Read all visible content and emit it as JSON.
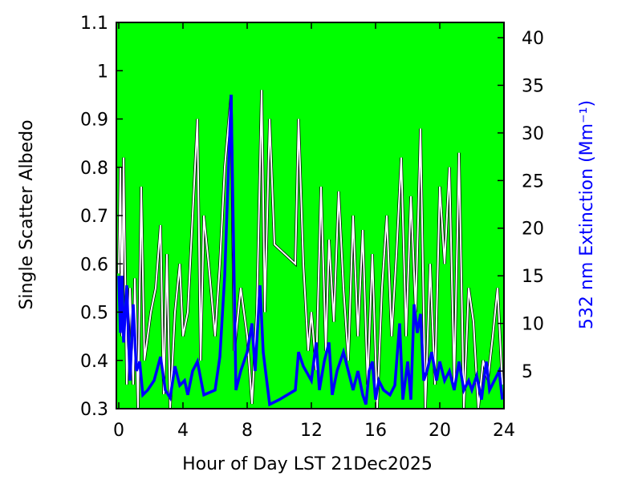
{
  "chart_data": {
    "type": "line",
    "xlabel": "Hour of Day LST 21Dec2025",
    "ylabel": "Single Scatter Albedo",
    "y2label": "532 nm Extinction (Mm⁻¹)",
    "background": "#00ff00",
    "xlim": [
      -0.15,
      24
    ],
    "xticks": [
      0,
      4,
      8,
      12,
      16,
      20,
      24
    ],
    "ylim": [
      0.3,
      1.1
    ],
    "yticks": [
      0.3,
      0.4,
      0.5,
      0.6,
      0.7,
      0.8,
      0.9,
      1,
      1.1
    ],
    "y2lim": [
      1.05,
      41.6
    ],
    "y2ticks": [
      5,
      10,
      15,
      20,
      25,
      30,
      35,
      40
    ],
    "series": [
      {
        "color": "#ffffff",
        "x": [
          0,
          0.1,
          0.2,
          0.3,
          0.5,
          0.7,
          0.9,
          1.0,
          1.2,
          1.4,
          1.6,
          1.8,
          2.0,
          2.3,
          2.6,
          2.8,
          3.0,
          3.2,
          3.5,
          3.8,
          4.0,
          4.3,
          4.6,
          4.9,
          5.1,
          5.3,
          5.6,
          6.0,
          6.3,
          6.6,
          7.0,
          7.2,
          7.6,
          8.0,
          8.3,
          8.6,
          8.9,
          9.1,
          9.4,
          9.7,
          11.0,
          11.2,
          11.5,
          11.8,
          12.0,
          12.3,
          12.6,
          12.9,
          13.1,
          13.4,
          13.7,
          14.0,
          14.3,
          14.6,
          14.9,
          15.2,
          15.5,
          15.8,
          16.1,
          16.4,
          16.7,
          17.0,
          17.3,
          17.6,
          17.9,
          18.2,
          18.5,
          18.8,
          19.1,
          19.4,
          19.7,
          20.0,
          20.3,
          20.6,
          20.9,
          21.2,
          21.5,
          21.8,
          22.1,
          22.4,
          22.7,
          23.0,
          23.3,
          23.6,
          23.9
        ],
        "values": [
          0.58,
          0.8,
          0.45,
          0.82,
          0.35,
          0.55,
          0.35,
          0.57,
          0.3,
          0.76,
          0.4,
          0.45,
          0.5,
          0.55,
          0.68,
          0.33,
          0.62,
          0.3,
          0.5,
          0.6,
          0.45,
          0.5,
          0.7,
          0.9,
          0.4,
          0.7,
          0.6,
          0.45,
          0.6,
          0.8,
          0.95,
          0.42,
          0.55,
          0.45,
          0.31,
          0.5,
          0.96,
          0.5,
          0.9,
          0.64,
          0.6,
          0.9,
          0.6,
          0.42,
          0.5,
          0.38,
          0.76,
          0.42,
          0.65,
          0.48,
          0.75,
          0.55,
          0.4,
          0.7,
          0.45,
          0.67,
          0.35,
          0.62,
          0.3,
          0.55,
          0.7,
          0.45,
          0.62,
          0.82,
          0.45,
          0.74,
          0.5,
          0.88,
          0.3,
          0.6,
          0.35,
          0.76,
          0.6,
          0.8,
          0.35,
          0.83,
          0.3,
          0.55,
          0.48,
          0.3,
          0.4,
          0.36,
          0.45,
          0.55,
          0.35
        ]
      },
      {
        "color": "#0000ff",
        "axis": "y2",
        "x": [
          0,
          0.1,
          0.2,
          0.3,
          0.5,
          0.7,
          0.9,
          1.1,
          1.3,
          1.5,
          1.8,
          2.2,
          2.6,
          2.9,
          3.2,
          3.5,
          3.8,
          4.1,
          4.3,
          4.6,
          4.9,
          5.3,
          6.0,
          6.3,
          6.6,
          7.0,
          7.3,
          7.6,
          8.0,
          8.3,
          8.5,
          8.8,
          9.0,
          9.4,
          10,
          11.0,
          11.2,
          11.5,
          12.0,
          12.3,
          12.5,
          12.8,
          13.1,
          13.3,
          13.6,
          14.0,
          14.3,
          14.6,
          14.9,
          15.2,
          15.4,
          15.6,
          15.8,
          16.0,
          16.2,
          16.5,
          16.9,
          17.2,
          17.5,
          17.7,
          18.0,
          18.2,
          18.4,
          18.6,
          18.8,
          19.0,
          19.2,
          19.5,
          19.8,
          20.0,
          20.3,
          20.6,
          20.9,
          21.2,
          21.5,
          21.8,
          22.0,
          22.3,
          22.6,
          22.9,
          23.1,
          23.4,
          23.7,
          23.9
        ],
        "values": [
          15,
          9,
          15,
          8,
          14,
          4,
          12,
          5,
          6,
          2.5,
          3,
          4,
          6.5,
          3,
          2.2,
          5.5,
          3.5,
          4,
          2.5,
          5,
          6,
          2.5,
          3,
          6.5,
          15,
          34,
          3,
          5,
          7,
          10,
          5,
          14,
          7,
          1.5,
          2,
          3,
          7,
          5.5,
          4,
          8,
          3,
          6,
          8,
          2.5,
          5,
          7,
          5,
          3,
          5,
          2.5,
          1.5,
          5,
          6,
          2,
          4,
          3,
          2.5,
          3.5,
          10,
          2,
          6,
          2,
          12,
          9,
          11,
          4,
          5,
          7,
          4,
          6,
          4,
          5,
          3,
          6,
          3,
          4,
          3,
          4.5,
          2,
          6,
          3,
          4,
          5,
          2
        ]
      }
    ]
  }
}
